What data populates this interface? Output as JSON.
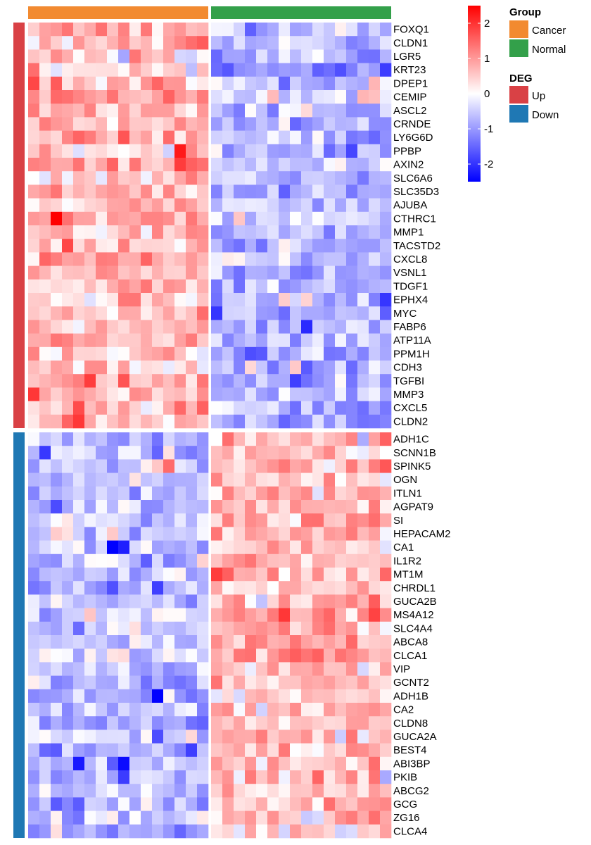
{
  "chart_data": {
    "type": "heatmap",
    "title": "",
    "columns": {
      "n_cancer": 16,
      "n_normal": 16
    },
    "column_groups": [
      {
        "name": "Cancer",
        "count": 16,
        "color": "#F28A30"
      },
      {
        "name": "Normal",
        "count": 16,
        "color": "#33A04A"
      }
    ],
    "row_groups": [
      {
        "name": "Up",
        "color": "#D94145",
        "genes": [
          "FOXQ1",
          "CLDN1",
          "LGR5",
          "KRT23",
          "DPEP1",
          "CEMIP",
          "ASCL2",
          "CRNDE",
          "LY6G6D",
          "PPBP",
          "AXIN2",
          "SLC6A6",
          "SLC35D3",
          "AJUBA",
          "CTHRC1",
          "MMP1",
          "TACSTD2",
          "CXCL8",
          "VSNL1",
          "TDGF1",
          "EPHX4",
          "MYC",
          "FABP6",
          "ATP11A",
          "PPM1H",
          "CDH3",
          "TGFBI",
          "MMP3",
          "CXCL5",
          "CLDN2"
        ],
        "cancer_mean": 0.75,
        "normal_mean": -0.7
      },
      {
        "name": "Down",
        "color": "#1F78B4",
        "genes": [
          "ADH1C",
          "SCNN1B",
          "SPINK5",
          "OGN",
          "ITLN1",
          "AGPAT9",
          "SI",
          "HEPACAM2",
          "CA1",
          "IL1R2",
          "MT1M",
          "CHRDL1",
          "GUCA2B",
          "MS4A12",
          "SLC4A4",
          "ABCA8",
          "CLCA1",
          "VIP",
          "GCNT2",
          "ADH1B",
          "CA2",
          "CLDN8",
          "GUCA2A",
          "BEST4",
          "ABI3BP",
          "PKIB",
          "ABCG2",
          "GCG",
          "ZG16",
          "CLCA4"
        ],
        "cancer_mean": -0.6,
        "normal_mean": 0.7
      }
    ],
    "color_scale": {
      "min": -2.5,
      "max": 2.5,
      "low": "#0000FF",
      "mid": "#FFFFFF",
      "high": "#FF0000",
      "ticks": [
        "2",
        "1",
        "0",
        "-1",
        "-2"
      ],
      "tick_values": [
        2,
        1,
        0,
        -1,
        -2
      ]
    }
  },
  "legend": {
    "group_title": "Group",
    "group_items": [
      {
        "label": "Cancer",
        "color": "#F28A30"
      },
      {
        "label": "Normal",
        "color": "#33A04A"
      }
    ],
    "deg_title": "DEG",
    "deg_items": [
      {
        "label": "Up",
        "color": "#D94145"
      },
      {
        "label": "Down",
        "color": "#1F78B4"
      }
    ]
  }
}
